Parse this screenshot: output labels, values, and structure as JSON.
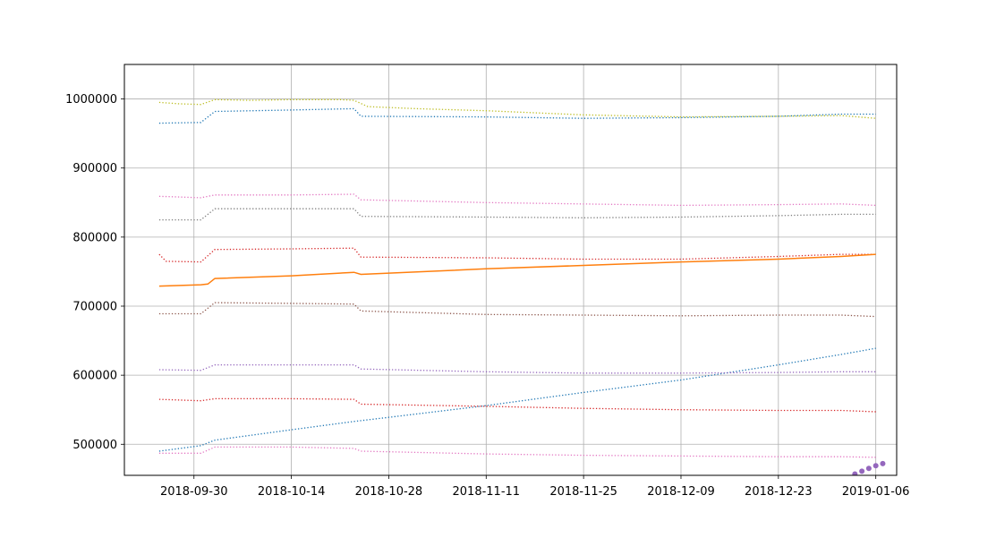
{
  "chart_data": {
    "type": "line",
    "title": "",
    "xlabel": "",
    "ylabel": "",
    "grid": true,
    "xlim": [
      "2018-09-20",
      "2019-01-09"
    ],
    "ylim": [
      455000,
      1050000
    ],
    "x_ticks": [
      "2018-09-30",
      "2018-10-14",
      "2018-10-28",
      "2018-11-11",
      "2018-11-25",
      "2018-12-09",
      "2018-12-23",
      "2019-01-06"
    ],
    "y_ticks": [
      500000,
      600000,
      700000,
      800000,
      900000,
      1000000
    ],
    "y_tick_labels": [
      "500000",
      "600000",
      "700000",
      "800000",
      "900000",
      "1000000"
    ],
    "series": [
      {
        "style": "dotted",
        "color": "#bcbd22",
        "points": [
          [
            "2018-09-25",
            995000
          ],
          [
            "2018-09-28",
            993000
          ],
          [
            "2018-10-01",
            992000
          ],
          [
            "2018-10-03",
            999000
          ],
          [
            "2018-10-08",
            998000
          ],
          [
            "2018-10-14",
            999000
          ],
          [
            "2018-10-21",
            999000
          ],
          [
            "2018-10-23",
            998000
          ],
          [
            "2018-10-25",
            989000
          ],
          [
            "2018-11-01",
            986000
          ],
          [
            "2018-11-11",
            983000
          ],
          [
            "2018-11-25",
            977000
          ],
          [
            "2018-12-09",
            974000
          ],
          [
            "2018-12-23",
            975000
          ],
          [
            "2019-01-01",
            976000
          ],
          [
            "2019-01-06",
            972000
          ]
        ]
      },
      {
        "style": "dotted",
        "color": "#1f77b4",
        "points": [
          [
            "2018-09-25",
            965000
          ],
          [
            "2018-10-01",
            966000
          ],
          [
            "2018-10-03",
            982000
          ],
          [
            "2018-10-14",
            984000
          ],
          [
            "2018-10-23",
            986000
          ],
          [
            "2018-10-24",
            975000
          ],
          [
            "2018-11-11",
            974000
          ],
          [
            "2018-11-25",
            972000
          ],
          [
            "2018-12-09",
            973000
          ],
          [
            "2018-12-23",
            975000
          ],
          [
            "2019-01-01",
            978000
          ],
          [
            "2019-01-06",
            978000
          ]
        ]
      },
      {
        "style": "dotted",
        "color": "#e377c2",
        "points": [
          [
            "2018-09-25",
            859000
          ],
          [
            "2018-10-01",
            857000
          ],
          [
            "2018-10-03",
            861000
          ],
          [
            "2018-10-14",
            861000
          ],
          [
            "2018-10-23",
            862000
          ],
          [
            "2018-10-24",
            854000
          ],
          [
            "2018-11-11",
            850000
          ],
          [
            "2018-12-09",
            846000
          ],
          [
            "2018-12-23",
            847000
          ],
          [
            "2019-01-01",
            848000
          ],
          [
            "2019-01-06",
            846000
          ]
        ]
      },
      {
        "style": "dotted",
        "color": "#7f7f7f",
        "points": [
          [
            "2018-09-25",
            825000
          ],
          [
            "2018-10-01",
            825000
          ],
          [
            "2018-10-03",
            841000
          ],
          [
            "2018-10-14",
            841000
          ],
          [
            "2018-10-23",
            841000
          ],
          [
            "2018-10-24",
            830000
          ],
          [
            "2018-11-11",
            829000
          ],
          [
            "2018-11-25",
            828000
          ],
          [
            "2018-12-09",
            829000
          ],
          [
            "2018-12-23",
            831000
          ],
          [
            "2019-01-01",
            833000
          ],
          [
            "2019-01-06",
            833000
          ]
        ]
      },
      {
        "style": "dotted",
        "color": "#d62728",
        "points": [
          [
            "2018-09-25",
            775000
          ],
          [
            "2018-09-26",
            765000
          ],
          [
            "2018-10-01",
            764000
          ],
          [
            "2018-10-03",
            782000
          ],
          [
            "2018-10-14",
            783000
          ],
          [
            "2018-10-23",
            784000
          ],
          [
            "2018-10-24",
            771000
          ],
          [
            "2018-11-11",
            770000
          ],
          [
            "2018-11-25",
            768000
          ],
          [
            "2018-12-09",
            768000
          ],
          [
            "2018-12-23",
            772000
          ],
          [
            "2019-01-01",
            775000
          ],
          [
            "2019-01-06",
            775000
          ]
        ]
      },
      {
        "style": "solid",
        "color": "#ff7f0e",
        "points": [
          [
            "2018-09-25",
            729000
          ],
          [
            "2018-10-01",
            731000
          ],
          [
            "2018-10-02",
            732000
          ],
          [
            "2018-10-03",
            740000
          ],
          [
            "2018-10-14",
            744000
          ],
          [
            "2018-10-23",
            749000
          ],
          [
            "2018-10-24",
            746000
          ],
          [
            "2018-11-11",
            754000
          ],
          [
            "2018-11-25",
            759000
          ],
          [
            "2018-12-09",
            764000
          ],
          [
            "2018-12-23",
            768000
          ],
          [
            "2019-01-01",
            772000
          ],
          [
            "2019-01-06",
            775000
          ]
        ]
      },
      {
        "style": "dotted",
        "color": "#8c564b",
        "points": [
          [
            "2018-09-25",
            689000
          ],
          [
            "2018-10-01",
            689000
          ],
          [
            "2018-10-03",
            705000
          ],
          [
            "2018-10-14",
            704000
          ],
          [
            "2018-10-23",
            703000
          ],
          [
            "2018-10-24",
            693000
          ],
          [
            "2018-11-11",
            688000
          ],
          [
            "2018-11-25",
            687000
          ],
          [
            "2018-12-09",
            686000
          ],
          [
            "2018-12-23",
            687000
          ],
          [
            "2019-01-01",
            687000
          ],
          [
            "2019-01-06",
            685000
          ]
        ]
      },
      {
        "style": "dotted",
        "color": "#1f77b4",
        "points": [
          [
            "2018-09-25",
            490000
          ],
          [
            "2018-10-01",
            498000
          ],
          [
            "2018-10-03",
            506000
          ],
          [
            "2018-10-14",
            521000
          ],
          [
            "2018-10-23",
            533000
          ],
          [
            "2018-10-28",
            539000
          ],
          [
            "2018-11-11",
            556000
          ],
          [
            "2018-11-25",
            575000
          ],
          [
            "2018-12-09",
            593000
          ],
          [
            "2018-12-23",
            615000
          ],
          [
            "2019-01-01",
            630000
          ],
          [
            "2019-01-06",
            639000
          ]
        ]
      },
      {
        "style": "dotted",
        "color": "#9467bd",
        "points": [
          [
            "2018-09-25",
            608000
          ],
          [
            "2018-10-01",
            607000
          ],
          [
            "2018-10-03",
            615000
          ],
          [
            "2018-10-14",
            615000
          ],
          [
            "2018-10-23",
            615000
          ],
          [
            "2018-10-24",
            609000
          ],
          [
            "2018-11-11",
            605000
          ],
          [
            "2018-11-25",
            603000
          ],
          [
            "2018-12-09",
            603000
          ],
          [
            "2018-12-23",
            604000
          ],
          [
            "2019-01-01",
            605000
          ],
          [
            "2019-01-06",
            605000
          ]
        ]
      },
      {
        "style": "dotted",
        "color": "#d62728",
        "points": [
          [
            "2018-09-25",
            565000
          ],
          [
            "2018-10-01",
            563000
          ],
          [
            "2018-10-03",
            566000
          ],
          [
            "2018-10-14",
            566000
          ],
          [
            "2018-10-23",
            565000
          ],
          [
            "2018-10-24",
            558000
          ],
          [
            "2018-11-11",
            555000
          ],
          [
            "2018-11-25",
            552000
          ],
          [
            "2018-12-09",
            550000
          ],
          [
            "2018-12-23",
            549000
          ],
          [
            "2019-01-01",
            549000
          ],
          [
            "2019-01-06",
            547000
          ]
        ]
      },
      {
        "style": "dotted",
        "color": "#e377c2",
        "points": [
          [
            "2018-09-25",
            487000
          ],
          [
            "2018-10-01",
            487000
          ],
          [
            "2018-10-03",
            496000
          ],
          [
            "2018-10-14",
            496000
          ],
          [
            "2018-10-23",
            494000
          ],
          [
            "2018-10-24",
            490000
          ],
          [
            "2018-11-11",
            486000
          ],
          [
            "2018-11-25",
            484000
          ],
          [
            "2018-12-09",
            483000
          ],
          [
            "2018-12-23",
            482000
          ],
          [
            "2019-01-01",
            482000
          ],
          [
            "2019-01-06",
            481000
          ]
        ]
      },
      {
        "style": "markers",
        "color": "#9467bd",
        "points": [
          [
            "2019-01-03",
            457000
          ],
          [
            "2019-01-04",
            461000
          ],
          [
            "2019-01-05",
            465000
          ],
          [
            "2019-01-06",
            469000
          ],
          [
            "2019-01-07",
            472000
          ]
        ]
      }
    ]
  }
}
